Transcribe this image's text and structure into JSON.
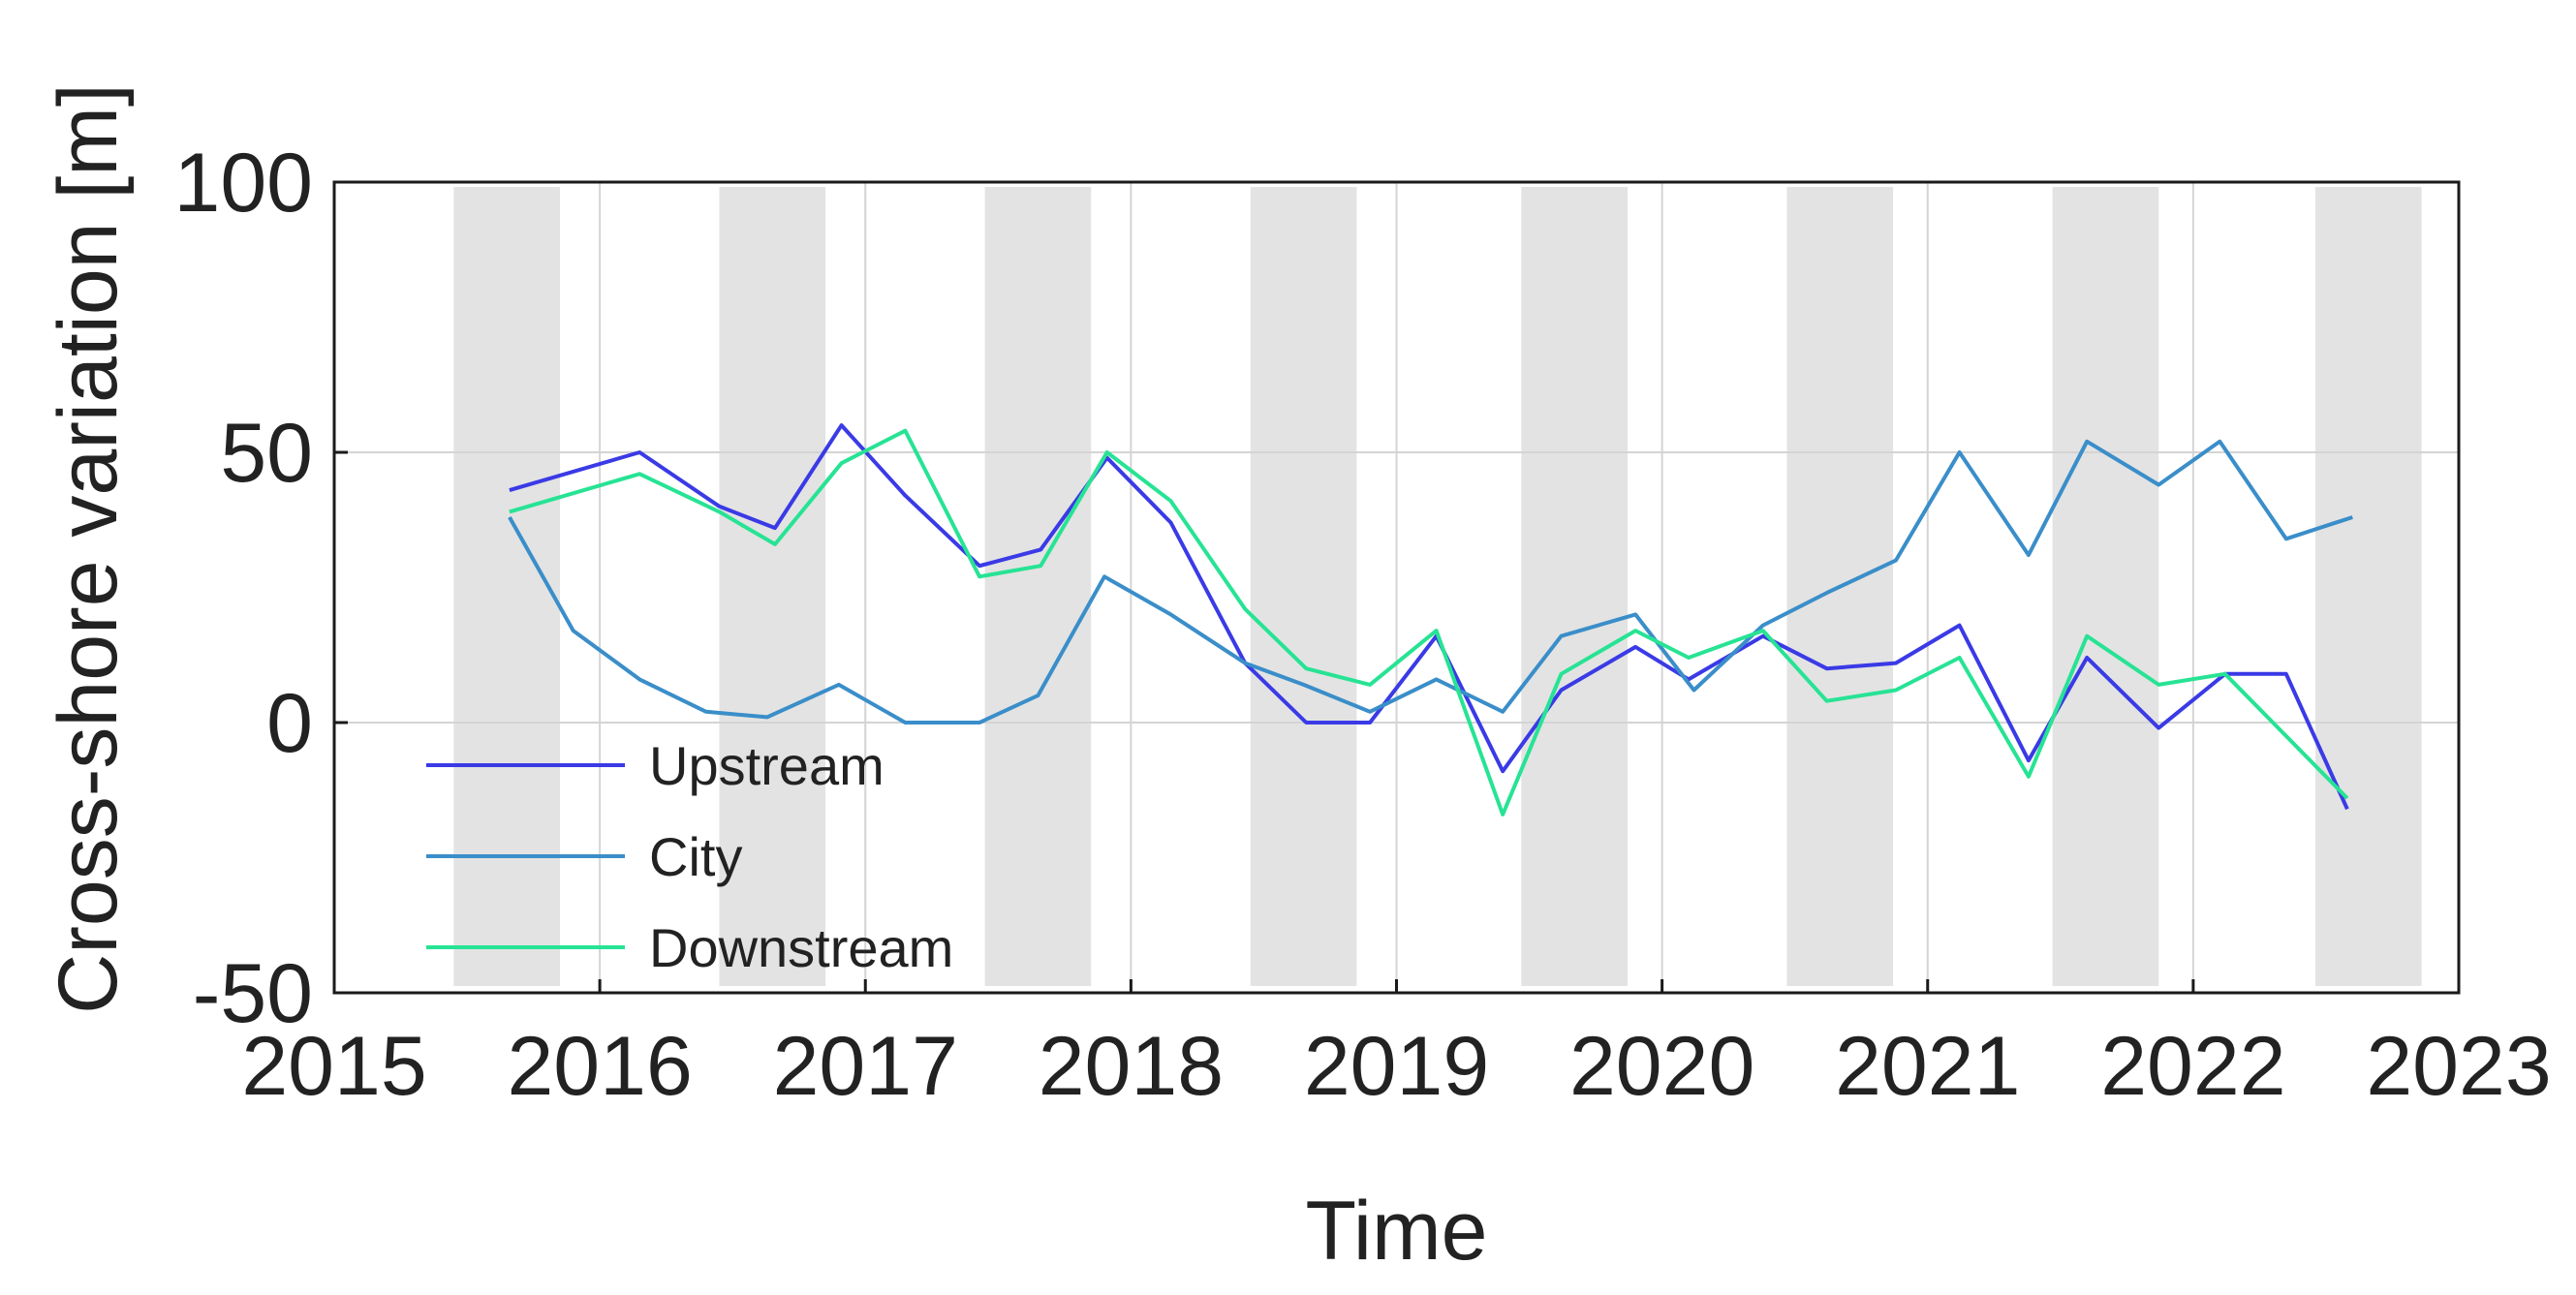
{
  "chart_data": {
    "type": "line",
    "xlabel": "Time",
    "ylabel": "Cross-shore variation [m]",
    "xlim": [
      2015,
      2023
    ],
    "ylim": [
      -50,
      100
    ],
    "x_ticks": [
      2015,
      2016,
      2017,
      2018,
      2019,
      2020,
      2021,
      2022,
      2023
    ],
    "y_ticks": [
      100,
      50,
      0,
      -50
    ],
    "grid": true,
    "legend_position": "bottom-left",
    "shaded_periods": [
      [
        2015.45,
        2015.85
      ],
      [
        2016.45,
        2016.85
      ],
      [
        2017.45,
        2017.85
      ],
      [
        2018.45,
        2018.85
      ],
      [
        2019.47,
        2019.87
      ],
      [
        2020.47,
        2020.87
      ],
      [
        2021.47,
        2021.87
      ],
      [
        2022.46,
        2022.86
      ]
    ],
    "series": [
      {
        "name": "Upstream",
        "color": "#3a3ae6",
        "x": [
          2015.66,
          2016.15,
          2016.45,
          2016.66,
          2016.91,
          2017.15,
          2017.43,
          2017.66,
          2017.91,
          2018.15,
          2018.43,
          2018.66,
          2018.9,
          2019.15,
          2019.4,
          2019.62,
          2019.9,
          2020.1,
          2020.38,
          2020.62,
          2020.88,
          2021.12,
          2021.38,
          2021.6,
          2021.87,
          2022.12,
          2022.35,
          2022.58
        ],
        "y": [
          43,
          50,
          40,
          36,
          55,
          42,
          29,
          32,
          49,
          37,
          11,
          0,
          0,
          16,
          -9,
          6,
          14,
          8,
          16,
          10,
          11,
          18,
          -7,
          12,
          -1,
          9,
          9,
          -16
        ]
      },
      {
        "name": "City",
        "color": "#3a8ec9",
        "x": [
          2015.66,
          2015.9,
          2016.15,
          2016.4,
          2016.63,
          2016.9,
          2017.15,
          2017.43,
          2017.65,
          2017.9,
          2018.15,
          2018.43,
          2018.65,
          2018.9,
          2019.15,
          2019.4,
          2019.62,
          2019.9,
          2020.12,
          2020.38,
          2020.62,
          2020.88,
          2021.12,
          2021.38,
          2021.6,
          2021.87,
          2022.1,
          2022.35,
          2022.6
        ],
        "y": [
          38,
          17,
          8,
          2,
          1,
          7,
          0,
          0,
          5,
          27,
          20,
          11,
          7,
          2,
          8,
          2,
          16,
          20,
          6,
          18,
          24,
          30,
          50,
          31,
          52,
          44,
          52,
          34,
          38
        ]
      },
      {
        "name": "Downstream",
        "color": "#27e394",
        "x": [
          2015.66,
          2016.15,
          2016.45,
          2016.66,
          2016.91,
          2017.15,
          2017.43,
          2017.66,
          2017.91,
          2018.15,
          2018.43,
          2018.66,
          2018.9,
          2019.15,
          2019.4,
          2019.62,
          2019.9,
          2020.1,
          2020.38,
          2020.62,
          2020.88,
          2021.12,
          2021.38,
          2021.6,
          2021.87,
          2022.12,
          2022.58
        ],
        "y": [
          39,
          46,
          39,
          33,
          48,
          54,
          27,
          29,
          50,
          41,
          21,
          10,
          7,
          17,
          -17,
          9,
          17,
          12,
          17,
          4,
          6,
          12,
          -10,
          16,
          7,
          9,
          -14
        ]
      }
    ]
  }
}
